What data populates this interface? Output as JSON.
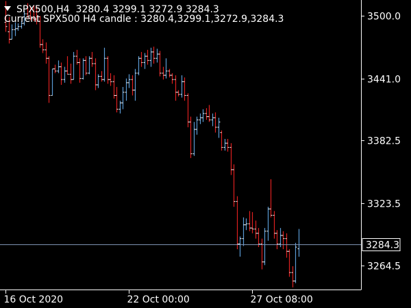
{
  "header": {
    "symbol_tf": "SPX500,H4",
    "ohlc": "3280.4 3299.1 3272.9 3284.3",
    "current_candle_text": "Current SPX500 H4 candle : 3280.4,3299.1,3272.9,3284.3"
  },
  "chart_data": {
    "type": "bar",
    "chart_style": "ohlc-bars",
    "ylim": [
      3242,
      3515
    ],
    "y_ticks": [
      "3500.0",
      "3441.0",
      "3382.5",
      "3323.5",
      "3264.5"
    ],
    "y_tick_values": [
      3500.0,
      3441.0,
      3382.5,
      3323.5,
      3264.5
    ],
    "x_ticks": [
      "16 Oct 2020",
      "22 Oct 00:00",
      "27 Oct 08:00"
    ],
    "x_tick_bar_index": [
      0,
      40,
      80
    ],
    "current_price": 3284.3,
    "current_price_label": "3284.3",
    "colors": {
      "up": "#5b9bd5",
      "down": "#e02020",
      "neutral": "#ffffff",
      "price_line": "#7f93b3",
      "background": "#000000",
      "axis": "#ffffff"
    },
    "bars": [
      [
        3494,
        3514,
        3485,
        3490
      ],
      [
        3485,
        3499,
        3474,
        3478
      ],
      [
        3478,
        3492,
        3478,
        3487
      ],
      [
        3487,
        3494,
        3481,
        3488
      ],
      [
        3488,
        3493,
        3486,
        3490
      ],
      [
        3490,
        3495,
        3488,
        3493
      ],
      [
        3493,
        3505,
        3491,
        3502
      ],
      [
        3502,
        3512,
        3498,
        3500
      ],
      [
        3500,
        3508,
        3496,
        3498
      ],
      [
        3498,
        3510,
        3495,
        3497
      ],
      [
        3497,
        3510,
        3492,
        3495
      ],
      [
        3495,
        3500,
        3470,
        3473
      ],
      [
        3473,
        3478,
        3465,
        3468
      ],
      [
        3468,
        3475,
        3455,
        3460
      ],
      [
        3460,
        3462,
        3418,
        3425
      ],
      [
        3425,
        3450,
        3425,
        3450
      ],
      [
        3450,
        3454,
        3446,
        3448
      ],
      [
        3448,
        3458,
        3446,
        3452
      ],
      [
        3452,
        3456,
        3435,
        3440
      ],
      [
        3440,
        3452,
        3437,
        3448
      ],
      [
        3448,
        3462,
        3445,
        3445
      ],
      [
        3445,
        3455,
        3436,
        3440
      ],
      [
        3440,
        3466,
        3440,
        3462
      ],
      [
        3462,
        3468,
        3454,
        3456
      ],
      [
        3456,
        3460,
        3437,
        3441
      ],
      [
        3441,
        3460,
        3440,
        3458
      ],
      [
        3458,
        3462,
        3444,
        3446
      ],
      [
        3446,
        3462,
        3445,
        3460
      ],
      [
        3460,
        3466,
        3452,
        3455
      ],
      [
        3455,
        3460,
        3430,
        3435
      ],
      [
        3435,
        3445,
        3432,
        3443
      ],
      [
        3443,
        3448,
        3438,
        3440
      ],
      [
        3440,
        3470,
        3438,
        3460
      ],
      [
        3460,
        3462,
        3436,
        3440
      ],
      [
        3440,
        3446,
        3434,
        3438
      ],
      [
        3438,
        3444,
        3422,
        3425
      ],
      [
        3425,
        3433,
        3409,
        3412
      ],
      [
        3412,
        3420,
        3408,
        3418
      ],
      [
        3418,
        3433,
        3412,
        3428
      ],
      [
        3428,
        3441,
        3420,
        3437
      ],
      [
        3437,
        3445,
        3432,
        3440
      ],
      [
        3440,
        3444,
        3425,
        3430
      ],
      [
        3430,
        3450,
        3420,
        3446
      ],
      [
        3446,
        3462,
        3444,
        3460
      ],
      [
        3460,
        3466,
        3452,
        3456
      ],
      [
        3456,
        3465,
        3450,
        3462
      ],
      [
        3462,
        3468,
        3454,
        3458
      ],
      [
        3458,
        3470,
        3452,
        3466
      ],
      [
        3466,
        3471,
        3455,
        3460
      ],
      [
        3460,
        3469,
        3456,
        3464
      ],
      [
        3464,
        3467,
        3443,
        3446
      ],
      [
        3446,
        3452,
        3440,
        3444
      ],
      [
        3444,
        3460,
        3441,
        3448
      ],
      [
        3448,
        3450,
        3442,
        3444
      ],
      [
        3444,
        3446,
        3436,
        3440
      ],
      [
        3440,
        3444,
        3420,
        3428
      ],
      [
        3428,
        3430,
        3424,
        3426
      ],
      [
        3426,
        3444,
        3423,
        3438
      ],
      [
        3438,
        3442,
        3420,
        3425
      ],
      [
        3425,
        3427,
        3395,
        3400
      ],
      [
        3400,
        3405,
        3366,
        3370
      ],
      [
        3370,
        3400,
        3368,
        3393
      ],
      [
        3393,
        3405,
        3388,
        3402
      ],
      [
        3402,
        3408,
        3398,
        3404
      ],
      [
        3404,
        3412,
        3400,
        3408
      ],
      [
        3408,
        3413,
        3402,
        3405
      ],
      [
        3405,
        3416,
        3400,
        3402
      ],
      [
        3402,
        3408,
        3396,
        3404
      ],
      [
        3404,
        3409,
        3390,
        3395
      ],
      [
        3395,
        3404,
        3385,
        3400
      ],
      [
        3390,
        3392,
        3373,
        3376
      ],
      [
        3376,
        3384,
        3373,
        3380
      ],
      [
        3380,
        3384,
        3372,
        3376
      ],
      [
        3376,
        3380,
        3350,
        3355
      ],
      [
        3355,
        3360,
        3320,
        3325
      ],
      [
        3325,
        3330,
        3280,
        3285
      ],
      [
        3285,
        3292,
        3273,
        3290
      ],
      [
        3290,
        3310,
        3283,
        3303
      ],
      [
        3303,
        3309,
        3298,
        3304
      ],
      [
        3304,
        3316,
        3297,
        3300
      ],
      [
        3300,
        3315,
        3295,
        3299
      ],
      [
        3299,
        3307,
        3290,
        3295
      ],
      [
        3295,
        3300,
        3282,
        3285
      ],
      [
        3285,
        3290,
        3261,
        3268
      ],
      [
        3268,
        3300,
        3265,
        3297
      ],
      [
        3297,
        3320,
        3288,
        3318
      ],
      [
        3318,
        3346,
        3310,
        3312
      ],
      [
        3312,
        3316,
        3290,
        3295
      ],
      [
        3295,
        3298,
        3280,
        3285
      ],
      [
        3285,
        3300,
        3282,
        3293
      ],
      [
        3293,
        3297,
        3280,
        3290
      ],
      [
        3290,
        3295,
        3272,
        3278
      ],
      [
        3278,
        3280,
        3254,
        3258
      ],
      [
        3258,
        3264,
        3244,
        3250
      ],
      [
        3250,
        3286,
        3248,
        3282
      ],
      [
        3280.4,
        3299.1,
        3272.9,
        3284.3
      ]
    ]
  }
}
